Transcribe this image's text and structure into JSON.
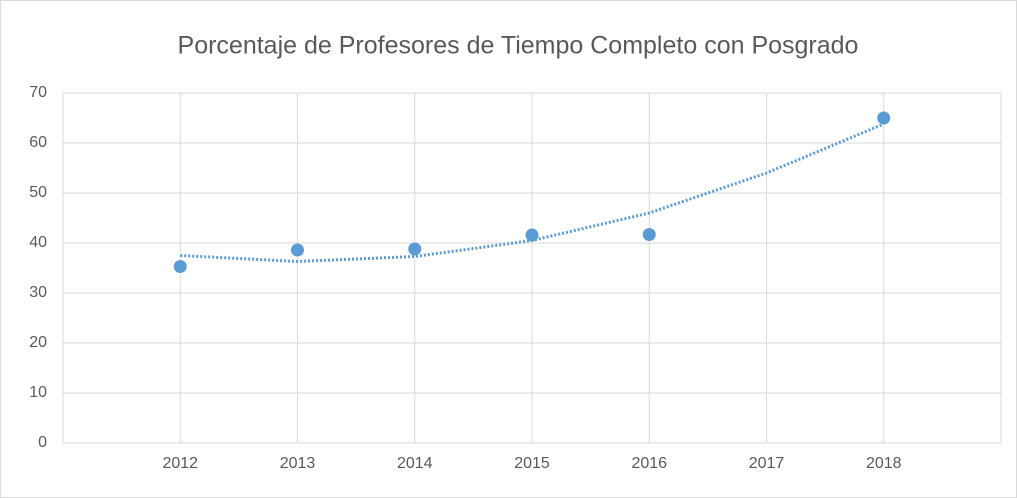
{
  "chart_data": {
    "type": "scatter",
    "title": "Porcentaje de Profesores de Tiempo Completo con Posgrado",
    "x": [
      2012,
      2013,
      2014,
      2015,
      2016,
      2018
    ],
    "values": [
      35.3,
      38.6,
      38.8,
      41.6,
      41.7,
      65
    ],
    "color": "#5b9bd5",
    "trendline": {
      "x": [
        2012,
        2013,
        2014,
        2015,
        2016,
        2017,
        2018
      ],
      "values": [
        37.5,
        36.3,
        37.3,
        40.5,
        46,
        54,
        63.8
      ],
      "color": "#5b9bd5"
    },
    "xlim": [
      2011,
      2019
    ],
    "xticks": [
      2012,
      2013,
      2014,
      2015,
      2016,
      2017,
      2018
    ],
    "ylim": [
      0,
      70
    ],
    "yticks": [
      0,
      10,
      20,
      30,
      40,
      50,
      60,
      70
    ],
    "grid": true
  }
}
